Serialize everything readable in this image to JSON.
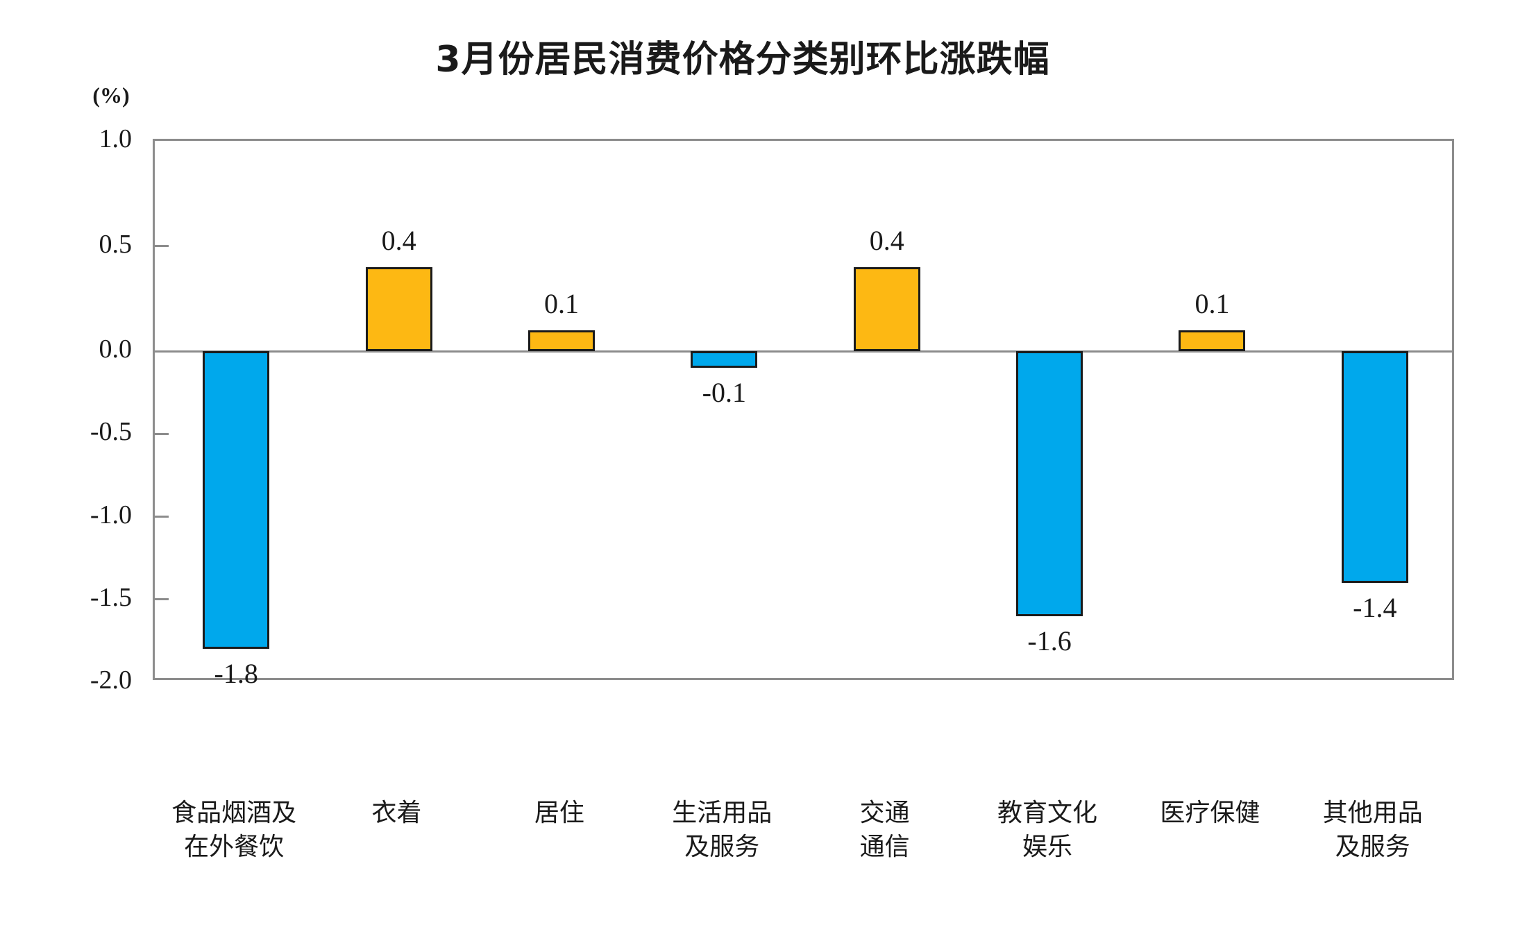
{
  "chart_data": {
    "type": "bar",
    "title": "3月份居民消费价格分类别环比涨跌幅",
    "ylabel": "(%)",
    "categories": [
      "食品烟酒及在外餐饮",
      "衣着",
      "居住",
      "生活用品及服务",
      "交通通信",
      "教育文化娱乐",
      "医疗保健",
      "其他用品及服务"
    ],
    "category_lines": [
      [
        "食品烟酒及",
        "在外餐饮"
      ],
      [
        "衣着"
      ],
      [
        "居住"
      ],
      [
        "生活用品",
        "及服务"
      ],
      [
        "交通",
        "通信"
      ],
      [
        "教育文化",
        "娱乐"
      ],
      [
        "医疗保健"
      ],
      [
        "其他用品",
        "及服务"
      ]
    ],
    "values": [
      -1.8,
      0.4,
      0.1,
      -0.1,
      0.4,
      -1.6,
      0.1,
      -1.4
    ],
    "value_labels": [
      "-1.8",
      "0.4",
      "0.1",
      "-0.1",
      "0.4",
      "-1.6",
      "0.1",
      "-1.4"
    ],
    "ylim": [
      -2.0,
      1.0
    ],
    "yticks": [
      1.0,
      0.5,
      0.0,
      -0.5,
      -1.0,
      -1.5,
      -2.0
    ],
    "ytick_labels": [
      "1.0",
      "0.5",
      "0.0",
      "-0.5",
      "-1.0",
      "-1.5",
      "-2.0"
    ],
    "grid": false,
    "legend": "none",
    "colors": {
      "positive_bar": "#FDB813",
      "negative_bar": "#00A8EC",
      "bar_border": "#1b1b1b",
      "axis": "#8C8C8C",
      "text": "#1A1A1A"
    }
  }
}
